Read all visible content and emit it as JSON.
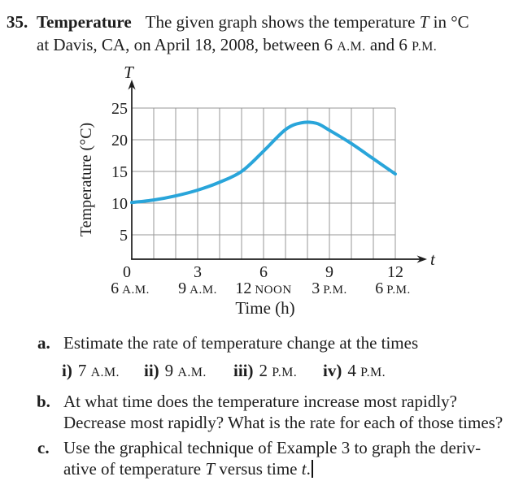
{
  "problem": {
    "number": "35.",
    "keyword": "Temperature",
    "intro_line1_pre": "The given graph shows the temperature ",
    "intro_line1_var": "T",
    "intro_line1_post": " in °C",
    "intro_line2_seg1": "at Davis, CA, on April 18, 2008, between 6 ",
    "intro_line2_am": "A.M.",
    "intro_line2_seg2": " and 6 ",
    "intro_line2_pm": "P.M."
  },
  "chart_data": {
    "type": "line",
    "title": "",
    "xlabel": "Time (h)",
    "ylabel": "Temperature (°C)",
    "x_axis_symbol": "t",
    "y_axis_symbol": "T",
    "xlim": [
      0,
      12
    ],
    "ylim_shown": [
      5,
      25
    ],
    "grid": true,
    "grid_color": "#979797",
    "axis_color": "#1d1d1d",
    "line_color": "#29a5da",
    "yticks": [
      5,
      10,
      15,
      20,
      25
    ],
    "xticks": [
      {
        "value": "0",
        "time_number": "6",
        "time_caps": "A.M."
      },
      {
        "value": "3",
        "time_number": "9",
        "time_caps": "A.M."
      },
      {
        "value": "6",
        "time_number": "12",
        "time_caps": "NOON"
      },
      {
        "value": "9",
        "time_number": "3",
        "time_caps": "P.M."
      },
      {
        "value": "12",
        "time_number": "6",
        "time_caps": "P.M."
      }
    ],
    "series": [
      {
        "name": "Temperature (°C) vs time (h)",
        "points": [
          [
            0,
            10.1
          ],
          [
            1,
            10.5
          ],
          [
            2,
            11.15
          ],
          [
            3,
            12.05
          ],
          [
            4,
            13.3
          ],
          [
            5,
            15.0
          ],
          [
            6,
            18.2
          ],
          [
            7,
            21.6
          ],
          [
            7.7,
            22.65
          ],
          [
            8.4,
            22.6
          ],
          [
            9,
            21.5
          ],
          [
            10,
            19.4
          ],
          [
            11,
            17.0
          ],
          [
            12,
            14.6
          ]
        ]
      }
    ]
  },
  "parts": {
    "a": {
      "label": "a.",
      "text": "Estimate the rate of temperature change at the times",
      "items": [
        {
          "label": "i)",
          "num": "7 ",
          "sc": "A.M."
        },
        {
          "label": "ii)",
          "num": "9 ",
          "sc": "A.M."
        },
        {
          "label": "iii)",
          "num": "2 ",
          "sc": "P.M."
        },
        {
          "label": "iv)",
          "num": "4 ",
          "sc": "P.M."
        }
      ]
    },
    "b": {
      "label": "b.",
      "line1": "At what time does the temperature increase most rapidly?",
      "line2": "Decrease most rapidly? What is the rate for each of those times?"
    },
    "c": {
      "label": "c.",
      "line1": "Use the graphical technique of Example 3 to graph the deriv-",
      "line2_pre": "ative of temperature ",
      "line2_T": "T",
      "line2_mid": " versus time ",
      "line2_t": "t",
      "line2_end": "."
    }
  }
}
